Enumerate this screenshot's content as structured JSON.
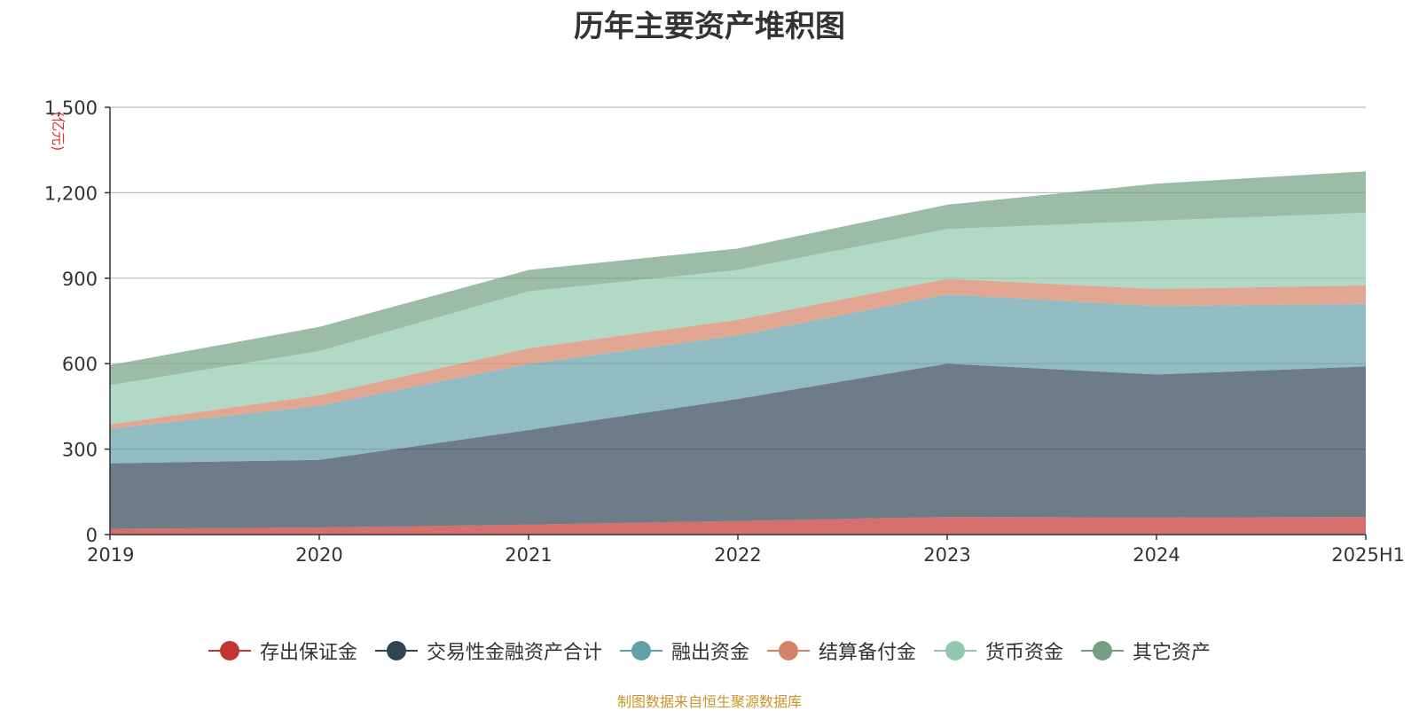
{
  "chart_data": {
    "type": "area",
    "stacked": true,
    "title": "历年主要资产堆积图",
    "unit_label": "(亿元)",
    "categories": [
      "2019",
      "2020",
      "2021",
      "2022",
      "2023",
      "2024",
      "2025H1"
    ],
    "ylim": [
      0,
      1500
    ],
    "yticks": [
      0,
      300,
      600,
      900,
      1200,
      1500
    ],
    "ytick_labels": [
      "0",
      "300",
      "600",
      "900",
      "1,200",
      "1,500"
    ],
    "grid": true,
    "legend_position": "bottom",
    "series": [
      {
        "name": "存出保证金",
        "color": "#c23531",
        "values": [
          20,
          25,
          35,
          48,
          62,
          60,
          62
        ]
      },
      {
        "name": "交易性金融资产合计",
        "color": "#2f4554",
        "values": [
          230,
          237,
          332,
          428,
          538,
          502,
          528
        ]
      },
      {
        "name": "融出资金",
        "color": "#61a0a8",
        "values": [
          122,
          190,
          232,
          223,
          243,
          240,
          220
        ]
      },
      {
        "name": "结算备付金",
        "color": "#d48265",
        "values": [
          15,
          37,
          55,
          55,
          55,
          60,
          65
        ]
      },
      {
        "name": "货币资金",
        "color": "#91c7ae",
        "values": [
          138,
          155,
          200,
          175,
          175,
          240,
          255
        ]
      },
      {
        "name": "其它资产",
        "color": "#749f83",
        "values": [
          70,
          85,
          75,
          75,
          85,
          130,
          145
        ]
      }
    ]
  },
  "source_note": "制图数据来自恒生聚源数据库"
}
